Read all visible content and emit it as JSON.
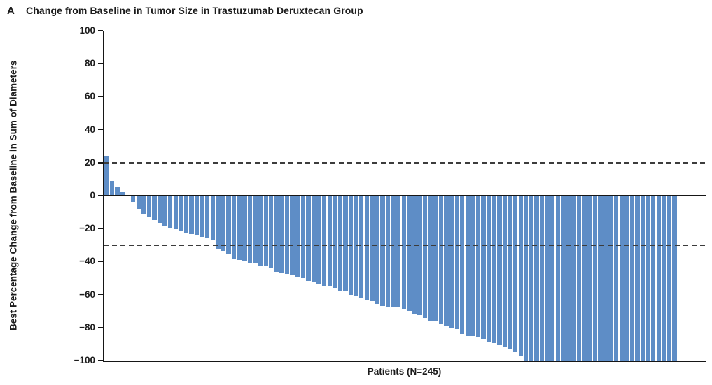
{
  "figure": {
    "panel_letter": "A",
    "title": "Change from Baseline in Tumor Size in Trastuzumab Deruxtecan Group",
    "xlabel": "Patients (N=245)",
    "ylabel": "Best Percentage Change from Baseline in Sum of Diameters"
  },
  "chart_data": {
    "type": "bar",
    "subtype": "waterfall",
    "title": "Change from Baseline in Tumor Size in Trastuzumab Deruxtecan Group",
    "xlabel": "Patients (N=245)",
    "ylabel": "Best Percentage Change from Baseline in Sum of Diameters",
    "n_patients_label": 245,
    "ylim": [
      -100,
      100
    ],
    "grid": false,
    "bar_color": "#5e8dc6",
    "axis_color": "#161616",
    "dashed_line_color": "#3c3c3c",
    "yticks": [
      {
        "v": 100,
        "label": "100"
      },
      {
        "v": 80,
        "label": "80"
      },
      {
        "v": 60,
        "label": "60"
      },
      {
        "v": 40,
        "label": "40"
      },
      {
        "v": 20,
        "label": "20"
      },
      {
        "v": 0,
        "label": "0"
      },
      {
        "v": -20,
        "label": "−20"
      },
      {
        "v": -40,
        "label": "−40"
      },
      {
        "v": -60,
        "label": "−60"
      },
      {
        "v": -80,
        "label": "−80"
      },
      {
        "v": -100,
        "label": "−100"
      }
    ],
    "reference_lines": [
      {
        "v": 20,
        "style": "dashed"
      },
      {
        "v": -30,
        "style": "dashed"
      }
    ],
    "values": [
      24,
      9,
      5,
      2,
      0,
      -4,
      -8,
      -11,
      -13,
      -15,
      -16.5,
      -18.5,
      -19.5,
      -20.5,
      -21.5,
      -22.5,
      -23.5,
      -24,
      -25,
      -26,
      -27,
      -32.5,
      -33.5,
      -35,
      -38,
      -39,
      -39.5,
      -40.5,
      -41,
      -42.5,
      -43,
      -43.5,
      -46,
      -47,
      -47.5,
      -48,
      -49,
      -50,
      -51.5,
      -52.5,
      -53.5,
      -54.5,
      -55,
      -56,
      -57.5,
      -58,
      -60,
      -61,
      -62,
      -63.5,
      -64,
      -65.5,
      -67,
      -67.5,
      -68,
      -68,
      -68.5,
      -70,
      -71.5,
      -72.5,
      -74,
      -76,
      -76,
      -78,
      -79,
      -80,
      -81,
      -84,
      -85,
      -85,
      -85.5,
      -87,
      -88.5,
      -89.5,
      -90.5,
      -92,
      -93,
      -95,
      -97,
      -100,
      -100,
      -100,
      -100,
      -100,
      -100,
      -100,
      -100,
      -100,
      -100,
      -100,
      -100,
      -100,
      -100,
      -100,
      -100,
      -100,
      -100,
      -100,
      -100,
      -100,
      -100,
      -100,
      -100,
      -100,
      -100,
      -100,
      -100,
      -100
    ]
  }
}
